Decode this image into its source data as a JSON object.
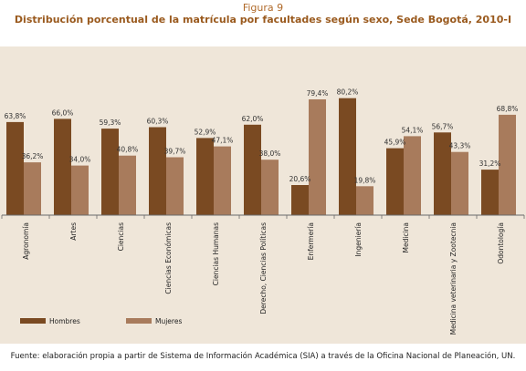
{
  "figure_label": "Figura 9",
  "title": "Distribución porcentual de la matrícula por facultades según sexo, Sede Bogotá, 2010-I",
  "source": "Fuente: elaboración propia a partir de Sistema de Información Académica (SIA) a través de la Oficina Nacional de Planeación, UN.",
  "colors": {
    "hombres": "#7a4a22",
    "mujeres": "#a87b5c",
    "panel": "#efe6d9",
    "axis": "#6a6a6a"
  },
  "chart_data": {
    "type": "bar",
    "title": "Distribución porcentual de la matrícula por facultades según sexo, Sede Bogotá, 2010-I",
    "xlabel": "",
    "ylabel": "",
    "ylim": [
      0,
      100
    ],
    "grid": false,
    "legend": "bottom-left",
    "categories": [
      "Agronomía",
      "Artes",
      "Ciencias",
      "Ciencias Económicas",
      "Ciencias Humanas",
      "Derecho, Ciencias Políticas",
      "Enfermería",
      "Ingeniería",
      "Medicina",
      "Medicina veterinaria y Zootecnia",
      "Odontología"
    ],
    "series": [
      {
        "name": "Hombres",
        "values": [
          63.8,
          66.0,
          59.3,
          60.3,
          52.9,
          62.0,
          20.6,
          80.2,
          45.9,
          56.7,
          31.2
        ],
        "labels": [
          "63,8%",
          "66,0%",
          "59,3%",
          "60,3%",
          "52,9%",
          "62,0%",
          "20,6%",
          "80,2%",
          "45,9%",
          "56,7%",
          "31,2%"
        ]
      },
      {
        "name": "Mujeres",
        "values": [
          36.2,
          34.0,
          40.8,
          39.7,
          47.1,
          38.0,
          79.4,
          19.8,
          54.1,
          43.3,
          68.8
        ],
        "labels": [
          "36,2%",
          "34,0%",
          "40,8%",
          "39,7%",
          "47,1%",
          "38,0%",
          "79,4%",
          "19,8%",
          "54,1%",
          "43,3%",
          "68,8%"
        ]
      }
    ]
  }
}
